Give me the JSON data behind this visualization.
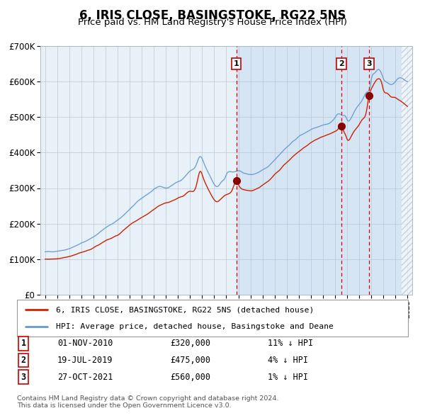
{
  "title": "6, IRIS CLOSE, BASINGSTOKE, RG22 5NS",
  "subtitle": "Price paid vs. HM Land Registry's House Price Index (HPI)",
  "legend_line1": "6, IRIS CLOSE, BASINGSTOKE, RG22 5NS (detached house)",
  "legend_line2": "HPI: Average price, detached house, Basingstoke and Deane",
  "footer1": "Contains HM Land Registry data © Crown copyright and database right 2024.",
  "footer2": "This data is licensed under the Open Government Licence v3.0.",
  "transactions": [
    {
      "num": 1,
      "date": "01-NOV-2010",
      "price": 320000,
      "hpi_pct": "11% ↓ HPI",
      "date_decimal": 2010.84
    },
    {
      "num": 2,
      "date": "19-JUL-2019",
      "price": 475000,
      "hpi_pct": "4% ↓ HPI",
      "date_decimal": 2019.54
    },
    {
      "num": 3,
      "date": "27-OCT-2021",
      "price": 560000,
      "hpi_pct": "1% ↓ HPI",
      "date_decimal": 2021.82
    }
  ],
  "hpi_line_color": "#6699cc",
  "price_line_color": "#cc2200",
  "dot_color": "#880000",
  "vline_color": "#dd0000",
  "plot_bg_color": "#e8f0f8",
  "grid_color": "#b8c8d8",
  "ylim": [
    0,
    700000
  ],
  "yticks": [
    0,
    100000,
    200000,
    300000,
    400000,
    500000,
    600000,
    700000
  ],
  "xlim_start": 1994.6,
  "xlim_end": 2025.4,
  "hpi_anchors": [
    [
      1995.0,
      120000
    ],
    [
      1996.0,
      123000
    ],
    [
      1997.0,
      130000
    ],
    [
      1998.0,
      145000
    ],
    [
      1999.0,
      163000
    ],
    [
      2000.0,
      188000
    ],
    [
      2001.0,
      210000
    ],
    [
      2002.0,
      240000
    ],
    [
      2003.0,
      272000
    ],
    [
      2004.0,
      295000
    ],
    [
      2004.5,
      305000
    ],
    [
      2005.0,
      300000
    ],
    [
      2005.5,
      308000
    ],
    [
      2006.0,
      318000
    ],
    [
      2006.5,
      330000
    ],
    [
      2007.0,
      348000
    ],
    [
      2007.5,
      365000
    ],
    [
      2007.8,
      388000
    ],
    [
      2008.2,
      365000
    ],
    [
      2008.7,
      330000
    ],
    [
      2009.0,
      310000
    ],
    [
      2009.3,
      305000
    ],
    [
      2009.6,
      318000
    ],
    [
      2009.9,
      330000
    ],
    [
      2010.0,
      338000
    ],
    [
      2010.5,
      345000
    ],
    [
      2011.0,
      348000
    ],
    [
      2011.5,
      342000
    ],
    [
      2012.0,
      338000
    ],
    [
      2012.5,
      342000
    ],
    [
      2013.0,
      350000
    ],
    [
      2013.5,
      362000
    ],
    [
      2014.0,
      380000
    ],
    [
      2014.5,
      398000
    ],
    [
      2015.0,
      415000
    ],
    [
      2015.5,
      430000
    ],
    [
      2016.0,
      445000
    ],
    [
      2016.5,
      455000
    ],
    [
      2017.0,
      465000
    ],
    [
      2017.5,
      472000
    ],
    [
      2018.0,
      478000
    ],
    [
      2018.5,
      482000
    ],
    [
      2019.0,
      498000
    ],
    [
      2019.3,
      510000
    ],
    [
      2019.6,
      505000
    ],
    [
      2019.9,
      500000
    ],
    [
      2020.0,
      492000
    ],
    [
      2020.3,
      495000
    ],
    [
      2020.6,
      515000
    ],
    [
      2021.0,
      535000
    ],
    [
      2021.3,
      550000
    ],
    [
      2021.6,
      568000
    ],
    [
      2021.9,
      585000
    ],
    [
      2022.0,
      605000
    ],
    [
      2022.3,
      625000
    ],
    [
      2022.6,
      635000
    ],
    [
      2022.9,
      618000
    ],
    [
      2023.0,
      608000
    ],
    [
      2023.3,
      598000
    ],
    [
      2023.6,
      592000
    ],
    [
      2024.0,
      600000
    ],
    [
      2024.3,
      610000
    ],
    [
      2024.6,
      608000
    ],
    [
      2025.0,
      600000
    ]
  ],
  "red_anchors": [
    [
      1995.0,
      100000
    ],
    [
      1996.0,
      102000
    ],
    [
      1997.0,
      108000
    ],
    [
      1998.0,
      118000
    ],
    [
      1999.0,
      132000
    ],
    [
      2000.0,
      152000
    ],
    [
      2001.0,
      168000
    ],
    [
      2002.0,
      195000
    ],
    [
      2003.0,
      218000
    ],
    [
      2004.0,
      240000
    ],
    [
      2004.5,
      252000
    ],
    [
      2005.0,
      258000
    ],
    [
      2005.5,
      265000
    ],
    [
      2006.0,
      272000
    ],
    [
      2006.5,
      280000
    ],
    [
      2007.0,
      292000
    ],
    [
      2007.5,
      305000
    ],
    [
      2007.8,
      345000
    ],
    [
      2008.1,
      328000
    ],
    [
      2008.5,
      298000
    ],
    [
      2008.9,
      272000
    ],
    [
      2009.2,
      262000
    ],
    [
      2009.5,
      268000
    ],
    [
      2009.8,
      278000
    ],
    [
      2010.0,
      282000
    ],
    [
      2010.5,
      295000
    ],
    [
      2010.84,
      320000
    ],
    [
      2011.0,
      310000
    ],
    [
      2011.5,
      295000
    ],
    [
      2012.0,
      292000
    ],
    [
      2012.5,
      298000
    ],
    [
      2013.0,
      308000
    ],
    [
      2013.5,
      320000
    ],
    [
      2014.0,
      338000
    ],
    [
      2014.5,
      355000
    ],
    [
      2015.0,
      372000
    ],
    [
      2015.5,
      388000
    ],
    [
      2016.0,
      402000
    ],
    [
      2016.5,
      415000
    ],
    [
      2017.0,
      428000
    ],
    [
      2017.5,
      438000
    ],
    [
      2018.0,
      445000
    ],
    [
      2018.5,
      452000
    ],
    [
      2019.0,
      460000
    ],
    [
      2019.3,
      468000
    ],
    [
      2019.54,
      475000
    ],
    [
      2019.7,
      462000
    ],
    [
      2019.9,
      448000
    ],
    [
      2020.0,
      438000
    ],
    [
      2020.3,
      442000
    ],
    [
      2020.6,
      460000
    ],
    [
      2021.0,
      478000
    ],
    [
      2021.3,
      495000
    ],
    [
      2021.6,
      515000
    ],
    [
      2021.82,
      560000
    ],
    [
      2022.0,
      578000
    ],
    [
      2022.3,
      598000
    ],
    [
      2022.6,
      608000
    ],
    [
      2022.9,
      592000
    ],
    [
      2023.0,
      578000
    ],
    [
      2023.3,
      568000
    ],
    [
      2023.6,
      558000
    ],
    [
      2024.0,
      555000
    ],
    [
      2024.3,
      548000
    ],
    [
      2024.6,
      540000
    ],
    [
      2025.0,
      530000
    ]
  ]
}
